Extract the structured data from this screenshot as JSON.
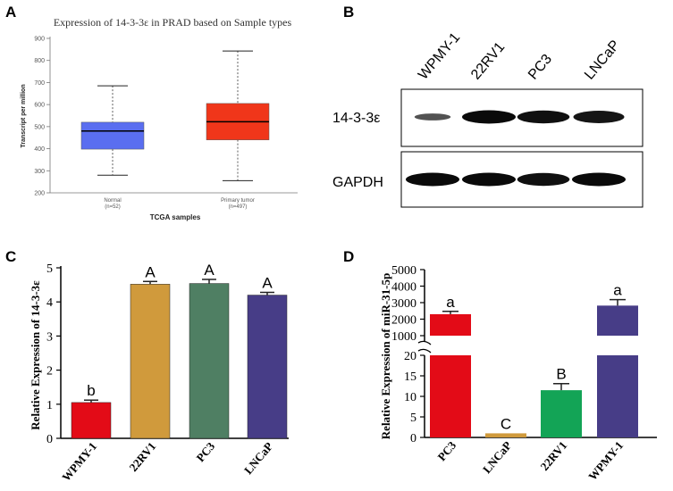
{
  "panels": {
    "a": "A",
    "b": "B",
    "c": "C",
    "d": "D"
  },
  "chart_data": [
    {
      "type": "box",
      "title": "Expression of 14-3-3ε in PRAD based on Sample types",
      "ylabel": "Transcript per million",
      "xlabel": "TCGA samples",
      "ylim": [
        200,
        900
      ],
      "yticks": [
        200,
        300,
        400,
        500,
        600,
        700,
        800,
        900
      ],
      "boxes": [
        {
          "name": "Normal",
          "n_label": "(n=52)",
          "min": 280,
          "q1": 398,
          "median": 480,
          "q3": 520,
          "max": 685,
          "color": "#5a6ef0"
        },
        {
          "name": "Primary tumor",
          "n_label": "(n=497)",
          "min": 255,
          "q1": 440,
          "median": 522,
          "q3": 605,
          "max": 843,
          "color": "#f0361a"
        }
      ]
    },
    {
      "type": "bar",
      "ylabel": "Relative Expression of 14-3-3ε",
      "ylim": [
        0,
        5
      ],
      "yticks": [
        0,
        1,
        2,
        3,
        4,
        5
      ],
      "categories": [
        "WPMY-1",
        "22RV1",
        "PC3",
        "LNCaP"
      ],
      "values": [
        1.05,
        4.52,
        4.54,
        4.2
      ],
      "errors": [
        0.07,
        0.08,
        0.12,
        0.08
      ],
      "significance": [
        "b",
        "A",
        "A",
        "A"
      ],
      "colors": [
        "#e30b17",
        "#d09a3c",
        "#4f7f63",
        "#473d87"
      ]
    },
    {
      "type": "bar",
      "ylabel": "Relative Expression of miR-31-5p",
      "axis_break": true,
      "upper_range": [
        1000,
        5000
      ],
      "upper_ticks": [
        1000,
        2000,
        3000,
        4000,
        5000
      ],
      "lower_range": [
        0,
        20
      ],
      "lower_ticks": [
        0,
        5,
        10,
        15,
        20
      ],
      "categories": [
        "PC3",
        "LNCaP",
        "22RV1",
        "WPMY-1"
      ],
      "values": [
        2300,
        1,
        11.5,
        2820
      ],
      "errors": [
        170,
        0,
        1.6,
        360
      ],
      "significance": [
        "a",
        "C",
        "B",
        "a"
      ],
      "colors": [
        "#e30b17",
        "#d09a3c",
        "#13a456",
        "#473d87"
      ]
    }
  ],
  "western_blot": {
    "lanes": [
      "WPMY-1",
      "22RV1",
      "PC3",
      "LNCaP"
    ],
    "rows": [
      {
        "label": "14-3-3ε",
        "intensities": [
          0.35,
          1,
          0.95,
          0.9
        ]
      },
      {
        "label": "GAPDH",
        "intensities": [
          1,
          1,
          0.95,
          1
        ]
      }
    ]
  }
}
